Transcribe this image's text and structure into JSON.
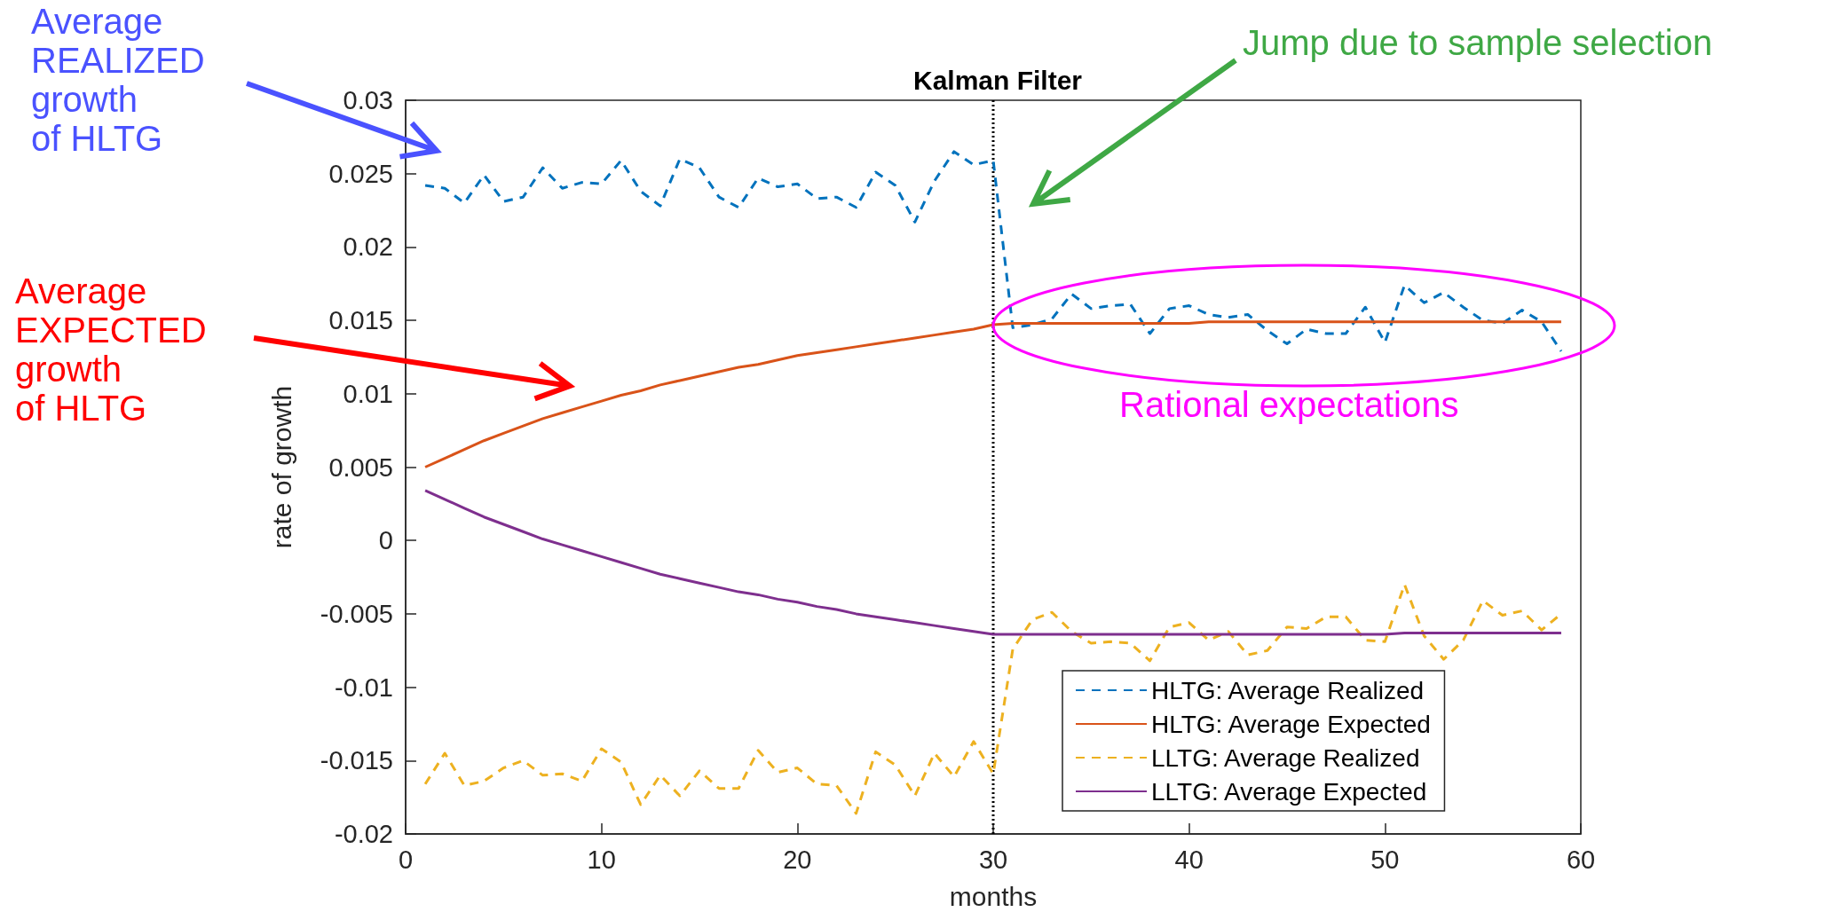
{
  "chart_data": {
    "type": "line",
    "title": "Kalman Filter",
    "xlabel": "months",
    "ylabel": "rate of growth",
    "x": [
      1,
      2,
      3,
      4,
      5,
      6,
      7,
      8,
      9,
      10,
      11,
      12,
      13,
      14,
      15,
      16,
      17,
      18,
      19,
      20,
      21,
      22,
      23,
      24,
      25,
      26,
      27,
      28,
      29,
      30,
      31,
      32,
      33,
      34,
      35,
      36,
      37,
      38,
      39,
      40,
      41,
      42,
      43,
      44,
      45,
      46,
      47,
      48,
      49,
      50,
      51,
      52,
      53,
      54,
      55,
      56,
      57,
      58,
      59
    ],
    "series": [
      {
        "name": "HLTG: Average Realized",
        "color": "#0072bd",
        "line_style": "dashed",
        "values": [
          0.0242,
          0.024,
          0.023,
          0.0249,
          0.0231,
          0.0234,
          0.0254,
          0.024,
          0.0244,
          0.0243,
          0.0259,
          0.0238,
          0.0228,
          0.026,
          0.0254,
          0.0234,
          0.0227,
          0.0247,
          0.0241,
          0.0243,
          0.0233,
          0.0234,
          0.0227,
          0.0251,
          0.0242,
          0.0217,
          0.0245,
          0.0265,
          0.0256,
          0.0259,
          0.0145,
          0.0147,
          0.0151,
          0.0168,
          0.0158,
          0.016,
          0.0161,
          0.0141,
          0.0158,
          0.016,
          0.0154,
          0.0152,
          0.0154,
          0.0143,
          0.0134,
          0.0144,
          0.0141,
          0.0141,
          0.0159,
          0.0135,
          0.0174,
          0.0162,
          0.0169,
          0.0159,
          0.015,
          0.0148,
          0.0157,
          0.0149,
          0.0129
        ]
      },
      {
        "name": "HLTG: Average Expected",
        "color": "#d95319",
        "line_style": "solid",
        "values": [
          0.005,
          0.0056,
          0.0062,
          0.0068,
          0.0073,
          0.0078,
          0.0083,
          0.0087,
          0.0091,
          0.0095,
          0.0099,
          0.0102,
          0.0106,
          0.0109,
          0.0112,
          0.0115,
          0.0118,
          0.012,
          0.0123,
          0.0126,
          0.0128,
          0.013,
          0.0132,
          0.0134,
          0.0136,
          0.0138,
          0.014,
          0.0142,
          0.0144,
          0.0147,
          0.0148,
          0.0148,
          0.0148,
          0.0148,
          0.0148,
          0.0148,
          0.0148,
          0.0148,
          0.0148,
          0.0148,
          0.0149,
          0.0149,
          0.0149,
          0.0149,
          0.0149,
          0.0149,
          0.0149,
          0.0149,
          0.0149,
          0.0149,
          0.0149,
          0.0149,
          0.0149,
          0.0149,
          0.0149,
          0.0149,
          0.0149,
          0.0149,
          0.0149
        ]
      },
      {
        "name": "LLTG: Average Realized",
        "color": "#edb120",
        "line_style": "dashed",
        "values": [
          -0.0166,
          -0.0145,
          -0.0167,
          -0.0164,
          -0.0155,
          -0.015,
          -0.016,
          -0.0159,
          -0.0164,
          -0.0142,
          -0.0151,
          -0.018,
          -0.016,
          -0.0174,
          -0.0157,
          -0.0169,
          -0.0169,
          -0.0143,
          -0.0158,
          -0.0155,
          -0.0166,
          -0.0167,
          -0.0186,
          -0.0144,
          -0.0153,
          -0.0174,
          -0.0145,
          -0.0161,
          -0.0137,
          -0.0159,
          -0.0074,
          -0.0054,
          -0.0049,
          -0.0062,
          -0.007,
          -0.0069,
          -0.007,
          -0.0082,
          -0.0059,
          -0.0056,
          -0.0068,
          -0.0062,
          -0.0078,
          -0.0075,
          -0.0059,
          -0.006,
          -0.0052,
          -0.0052,
          -0.0068,
          -0.0069,
          -0.003,
          -0.0065,
          -0.0081,
          -0.0068,
          -0.0041,
          -0.0051,
          -0.0048,
          -0.0061,
          -0.005
        ]
      },
      {
        "name": "LLTG: Average Expected",
        "color": "#7e2f8e",
        "line_style": "solid",
        "values": [
          0.0034,
          0.0028,
          0.0022,
          0.0016,
          0.0011,
          0.0006,
          0.0001,
          -0.0003,
          -0.0007,
          -0.0011,
          -0.0015,
          -0.0019,
          -0.0023,
          -0.0026,
          -0.0029,
          -0.0032,
          -0.0035,
          -0.0037,
          -0.004,
          -0.0042,
          -0.0045,
          -0.0047,
          -0.005,
          -0.0052,
          -0.0054,
          -0.0056,
          -0.0058,
          -0.006,
          -0.0062,
          -0.0064,
          -0.0064,
          -0.0064,
          -0.0064,
          -0.0064,
          -0.0064,
          -0.0064,
          -0.0064,
          -0.0064,
          -0.0064,
          -0.0064,
          -0.0064,
          -0.0064,
          -0.0064,
          -0.0064,
          -0.0064,
          -0.0064,
          -0.0064,
          -0.0064,
          -0.0064,
          -0.0064,
          -0.0063,
          -0.0063,
          -0.0063,
          -0.0063,
          -0.0063,
          -0.0063,
          -0.0063,
          -0.0063,
          -0.0063
        ]
      }
    ],
    "xlim": [
      0,
      60
    ],
    "xticks": [
      0,
      10,
      20,
      30,
      40,
      50,
      60
    ],
    "ylim": [
      -0.02,
      0.03
    ],
    "yticks": [
      -0.02,
      -0.015,
      -0.01,
      -0.005,
      0,
      0.005,
      0.01,
      0.015,
      0.02,
      0.025,
      0.03
    ],
    "ref_lines": [
      {
        "axis": "x",
        "value": 30,
        "color": "#000000",
        "line_style": "dotted"
      }
    ],
    "annotations": [
      "Average\nREALIZED\ngrowth\nof HLTG",
      "Average\nEXPECTED\ngrowth\nof HLTG",
      "Jump due to sample selection",
      "Rational expectations"
    ],
    "grid": false,
    "legend": "bottom right",
    "marker": "none"
  }
}
